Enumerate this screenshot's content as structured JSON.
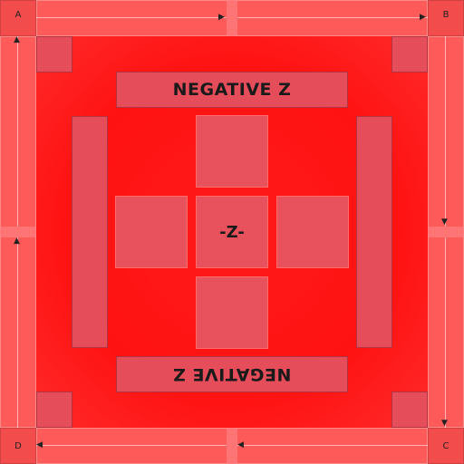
{
  "texture": {
    "title_top": "NEGATIVE Z",
    "title_bottom_mirrored": "NEGATIVE Z",
    "center_label": "-Z-",
    "corners": {
      "top_left": "A",
      "top_right": "B",
      "bottom_right": "C",
      "bottom_left": "D"
    },
    "colors": {
      "base_red": "#ff1a1a",
      "panel": "#e54d5a",
      "frame": "#ff5a5a",
      "text": "#1a1a1a"
    },
    "icons": {
      "frame_arrows": "arrow-icon"
    }
  }
}
